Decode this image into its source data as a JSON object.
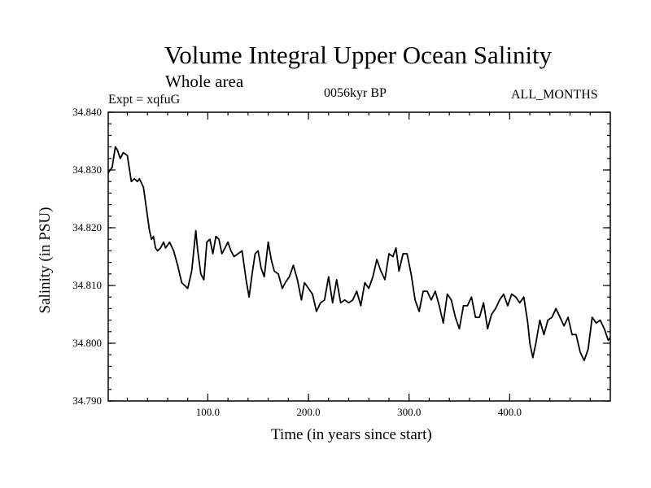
{
  "chart_data": {
    "type": "line",
    "title": "Volume Integral Upper Ocean Salinity",
    "subtitle": "Whole area",
    "experiment": "Expt = xqfuG",
    "period": "0056kyr BP",
    "months": "ALL_MONTHS",
    "xlabel": "Time (in years since start)",
    "ylabel": "Salinity (in PSU)",
    "xlim": [
      1,
      500
    ],
    "ylim": [
      34.79,
      34.84
    ],
    "xticks": [
      100,
      200,
      300,
      400
    ],
    "xtick_labels": [
      "100.0",
      "200.0",
      "300.0",
      "400.0"
    ],
    "yticks": [
      34.79,
      34.8,
      34.81,
      34.82,
      34.83,
      34.84
    ],
    "ytick_labels": [
      "34.790",
      "34.800",
      "34.810",
      "34.820",
      "34.830",
      "34.840"
    ],
    "series": [
      {
        "name": "Salinity",
        "x": [
          1,
          5,
          8,
          10,
          13,
          16,
          20,
          24,
          27,
          30,
          32,
          36,
          40,
          42,
          44,
          46,
          48,
          50,
          53,
          56,
          58,
          62,
          66,
          70,
          74,
          77,
          80,
          84,
          88,
          90,
          93,
          96,
          99,
          102,
          105,
          108,
          111,
          114,
          117,
          120,
          123,
          126,
          130,
          134,
          138,
          141,
          144,
          147,
          150,
          153,
          156,
          160,
          163,
          166,
          170,
          174,
          177,
          181,
          185,
          189,
          193,
          196,
          200,
          204,
          208,
          212,
          216,
          220,
          224,
          228,
          232,
          236,
          240,
          244,
          248,
          252,
          256,
          260,
          264,
          268,
          272,
          276,
          280,
          284,
          287,
          290,
          294,
          298,
          302,
          306,
          310,
          314,
          318,
          322,
          326,
          330,
          334,
          338,
          342,
          346,
          350,
          354,
          358,
          362,
          366,
          370,
          374,
          378,
          382,
          386,
          390,
          394,
          398,
          402,
          406,
          410,
          414,
          418,
          420,
          423,
          426,
          430,
          434,
          438,
          442,
          446,
          450,
          454,
          458,
          462,
          466,
          470,
          474,
          478,
          482,
          486,
          490,
          494,
          498,
          500
        ],
        "values": [
          34.8295,
          34.8305,
          34.834,
          34.8335,
          34.832,
          34.833,
          34.8325,
          34.828,
          34.8285,
          34.828,
          34.8285,
          34.827,
          34.822,
          34.8195,
          34.818,
          34.8185,
          34.8165,
          34.816,
          34.8165,
          34.8175,
          34.8165,
          34.8175,
          34.816,
          34.8135,
          34.8105,
          34.81,
          34.8095,
          34.8125,
          34.8195,
          34.816,
          34.812,
          34.811,
          34.8175,
          34.818,
          34.8155,
          34.8185,
          34.818,
          34.8155,
          34.8165,
          34.8175,
          34.816,
          34.815,
          34.8155,
          34.816,
          34.811,
          34.808,
          34.812,
          34.8155,
          34.816,
          34.813,
          34.8115,
          34.8175,
          34.8145,
          34.8125,
          34.812,
          34.8095,
          34.8105,
          34.8115,
          34.8135,
          34.811,
          34.8075,
          34.8105,
          34.8095,
          34.8085,
          34.8055,
          34.807,
          34.8075,
          34.8115,
          34.807,
          34.811,
          34.807,
          34.8075,
          34.807,
          34.8075,
          34.809,
          34.8065,
          34.8105,
          34.8095,
          34.8115,
          34.8145,
          34.8125,
          34.811,
          34.8155,
          34.815,
          34.8165,
          34.8125,
          34.8155,
          34.8155,
          34.812,
          34.8075,
          34.8055,
          34.809,
          34.809,
          34.8075,
          34.809,
          34.8065,
          34.8035,
          34.8085,
          34.8075,
          34.8045,
          34.8025,
          34.8065,
          34.8065,
          34.808,
          34.8045,
          34.8045,
          34.807,
          34.8025,
          34.805,
          34.806,
          34.8075,
          34.8085,
          34.8065,
          34.8085,
          34.808,
          34.807,
          34.808,
          34.8035,
          34.8,
          34.7975,
          34.8,
          34.804,
          34.8015,
          34.804,
          34.8045,
          34.806,
          34.8045,
          34.803,
          34.8045,
          34.8015,
          34.8015,
          34.7985,
          34.797,
          34.799,
          34.8045,
          34.8035,
          34.804,
          34.8025,
          34.8005,
          34.801
        ]
      }
    ]
  }
}
